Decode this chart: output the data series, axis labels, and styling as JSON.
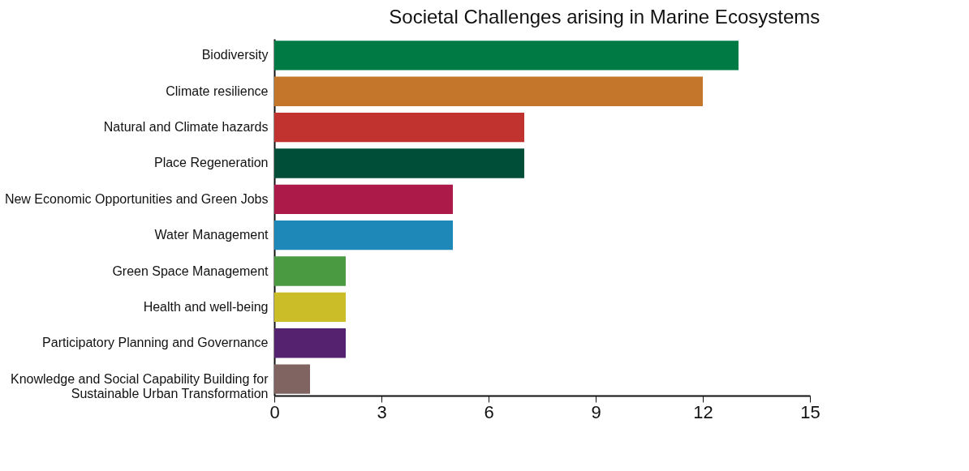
{
  "chart_data": {
    "type": "bar",
    "orientation": "horizontal",
    "title": "Societal Challenges arising in Marine Ecosystems",
    "categories": [
      "Biodiversity",
      "Climate resilience",
      "Natural and Climate hazards",
      "Place Regeneration",
      "New Economic Opportunities and Green Jobs",
      "Water Management",
      "Green Space Management",
      "Health and well-being",
      "Participatory Planning and Governance",
      "Knowledge and Social Capability Building for\nSustainable Urban Transformation"
    ],
    "values": [
      13,
      12,
      7,
      7,
      5,
      5,
      2,
      2,
      2,
      1
    ],
    "colors": [
      "#007a45",
      "#c4772b",
      "#c0332e",
      "#004d38",
      "#ab1a48",
      "#1e88b8",
      "#4a9a41",
      "#cbbd27",
      "#55226f",
      "#7f6461"
    ],
    "xlim": [
      0,
      15
    ],
    "xticks": [
      0,
      3,
      6,
      9,
      12,
      15
    ],
    "grid": false
  }
}
